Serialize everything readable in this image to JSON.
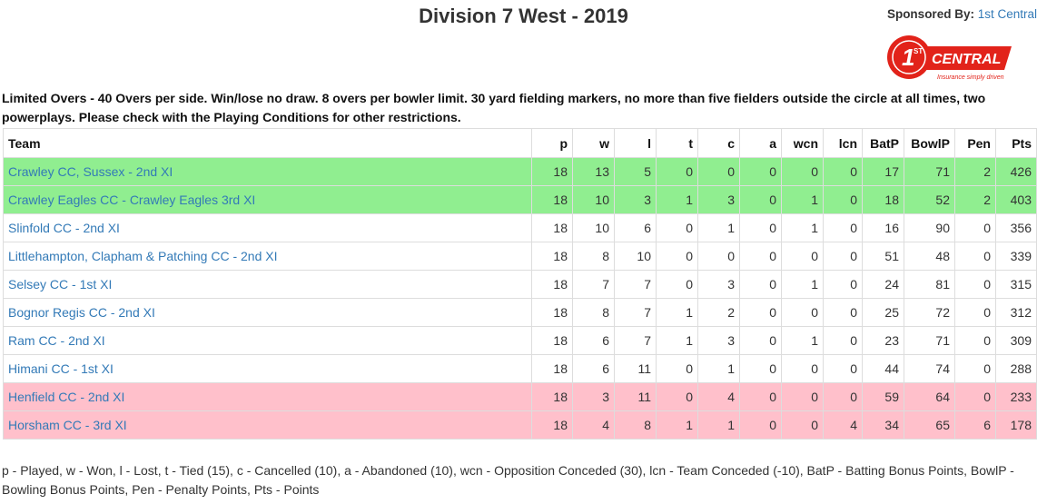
{
  "header": {
    "title": "Division 7 West - 2019",
    "sponsor_label": "Sponsored By:",
    "sponsor_link": "1st Central",
    "logo_text_main": "CENTRAL",
    "logo_text_tag": "Insurance simply driven",
    "logo_text_num": "1",
    "logo_text_sup": "ST"
  },
  "conditions": "Limited Overs - 40 Overs per side. Win/lose no draw. 8 overs per bowler limit. 30 yard fielding markers, no more than five fielders outside the circle at all times, two powerplays. Please check with the Playing Conditions for other restrictions.",
  "colors": {
    "promotion": "#90ee90",
    "relegation": "#ffc0cb",
    "link": "#337ab7"
  },
  "table": {
    "headers": [
      "Team",
      "p",
      "w",
      "l",
      "t",
      "c",
      "a",
      "wcn",
      "lcn",
      "BatP",
      "BowlP",
      "Pen",
      "Pts"
    ],
    "rows": [
      {
        "team": "Crawley CC, Sussex - 2nd XI",
        "status": "promo",
        "p": "18",
        "w": "13",
        "l": "5",
        "t": "0",
        "c": "0",
        "a": "0",
        "wcn": "0",
        "lcn": "0",
        "batp": "17",
        "bowlp": "71",
        "pen": "2",
        "pts": "426"
      },
      {
        "team": "Crawley Eagles CC - Crawley Eagles 3rd XI",
        "status": "promo",
        "p": "18",
        "w": "10",
        "l": "3",
        "t": "1",
        "c": "3",
        "a": "0",
        "wcn": "1",
        "lcn": "0",
        "batp": "18",
        "bowlp": "52",
        "pen": "2",
        "pts": "403"
      },
      {
        "team": "Slinfold CC - 2nd XI",
        "status": "",
        "p": "18",
        "w": "10",
        "l": "6",
        "t": "0",
        "c": "1",
        "a": "0",
        "wcn": "1",
        "lcn": "0",
        "batp": "16",
        "bowlp": "90",
        "pen": "0",
        "pts": "356"
      },
      {
        "team": "Littlehampton, Clapham & Patching CC - 2nd XI",
        "status": "",
        "p": "18",
        "w": "8",
        "l": "10",
        "t": "0",
        "c": "0",
        "a": "0",
        "wcn": "0",
        "lcn": "0",
        "batp": "51",
        "bowlp": "48",
        "pen": "0",
        "pts": "339"
      },
      {
        "team": "Selsey CC - 1st XI",
        "status": "",
        "p": "18",
        "w": "7",
        "l": "7",
        "t": "0",
        "c": "3",
        "a": "0",
        "wcn": "1",
        "lcn": "0",
        "batp": "24",
        "bowlp": "81",
        "pen": "0",
        "pts": "315"
      },
      {
        "team": "Bognor Regis CC - 2nd XI",
        "status": "",
        "p": "18",
        "w": "8",
        "l": "7",
        "t": "1",
        "c": "2",
        "a": "0",
        "wcn": "0",
        "lcn": "0",
        "batp": "25",
        "bowlp": "72",
        "pen": "0",
        "pts": "312"
      },
      {
        "team": "Ram CC - 2nd XI",
        "status": "",
        "p": "18",
        "w": "6",
        "l": "7",
        "t": "1",
        "c": "3",
        "a": "0",
        "wcn": "1",
        "lcn": "0",
        "batp": "23",
        "bowlp": "71",
        "pen": "0",
        "pts": "309"
      },
      {
        "team": "Himani CC - 1st XI",
        "status": "",
        "p": "18",
        "w": "6",
        "l": "11",
        "t": "0",
        "c": "1",
        "a": "0",
        "wcn": "0",
        "lcn": "0",
        "batp": "44",
        "bowlp": "74",
        "pen": "0",
        "pts": "288"
      },
      {
        "team": "Henfield CC - 2nd XI",
        "status": "releg",
        "p": "18",
        "w": "3",
        "l": "11",
        "t": "0",
        "c": "4",
        "a": "0",
        "wcn": "0",
        "lcn": "0",
        "batp": "59",
        "bowlp": "64",
        "pen": "0",
        "pts": "233"
      },
      {
        "team": "Horsham CC - 3rd XI",
        "status": "releg",
        "p": "18",
        "w": "4",
        "l": "8",
        "t": "1",
        "c": "1",
        "a": "0",
        "wcn": "0",
        "lcn": "4",
        "batp": "34",
        "bowlp": "65",
        "pen": "6",
        "pts": "178"
      }
    ]
  },
  "legend": "p - Played, w - Won, l - Lost, t - Tied (15), c - Cancelled (10), a - Abandoned (10), wcn - Opposition Conceded (30), lcn - Team Conceded (-10), BatP - Batting Bonus Points, BowlP - Bowling Bonus Points, Pen - Penalty Points, Pts - Points"
}
